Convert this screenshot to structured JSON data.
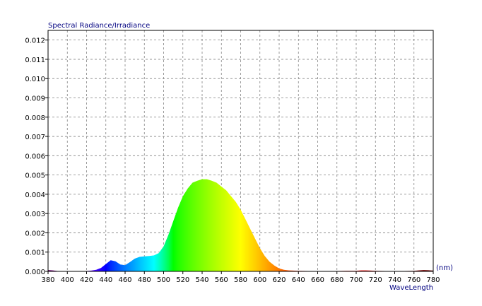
{
  "chart_data": {
    "type": "area",
    "title": "Spectral Radiance/Irradiance",
    "xlabel": "WaveLength",
    "x_unit": "(nm)",
    "ylabel": "",
    "xlim": [
      380,
      780
    ],
    "ylim": [
      0,
      0.0125
    ],
    "grid": true,
    "x_ticks": [
      "380",
      "400",
      "420",
      "440",
      "460",
      "480",
      "500",
      "520",
      "540",
      "560",
      "580",
      "600",
      "620",
      "640",
      "660",
      "680",
      "700",
      "720",
      "740",
      "760",
      "780"
    ],
    "y_ticks": [
      "0.000",
      "0.001",
      "0.002",
      "0.003",
      "0.004",
      "0.005",
      "0.006",
      "0.007",
      "0.008",
      "0.009",
      "0.010",
      "0.011",
      "0.012"
    ],
    "colors": {
      "axis": "#000000",
      "grid": "#808080",
      "title_text": "#000080",
      "tick_text": "#000000"
    },
    "series": [
      {
        "x": [
          380,
          385,
          390,
          395,
          400,
          405,
          410,
          415,
          420,
          425,
          430,
          435,
          440,
          445,
          450,
          455,
          460,
          465,
          470,
          475,
          480,
          485,
          490,
          495,
          500,
          505,
          510,
          515,
          520,
          525,
          530,
          535,
          540,
          545,
          550,
          555,
          560,
          565,
          570,
          575,
          580,
          585,
          590,
          595,
          600,
          605,
          610,
          615,
          620,
          625,
          630,
          640,
          650,
          660,
          670,
          680,
          690,
          700,
          705,
          710,
          715,
          720,
          730,
          740,
          750,
          760,
          765,
          770,
          775,
          780
        ],
        "y": [
          7e-05,
          5e-05,
          2e-05,
          1e-05,
          0.0,
          0.0,
          1e-05,
          1e-05,
          2e-05,
          4e-05,
          8e-05,
          0.00018,
          0.00038,
          0.00058,
          0.00052,
          0.00036,
          0.00032,
          0.00048,
          0.00066,
          0.00075,
          0.00078,
          0.0008,
          0.00083,
          0.00095,
          0.0013,
          0.0019,
          0.0026,
          0.0033,
          0.0039,
          0.0043,
          0.0046,
          0.0047,
          0.00478,
          0.00478,
          0.0047,
          0.0046,
          0.0044,
          0.0042,
          0.0039,
          0.0036,
          0.0032,
          0.0027,
          0.0022,
          0.0017,
          0.0012,
          0.0008,
          0.0005,
          0.0003,
          0.00015,
          8e-05,
          5e-05,
          3e-05,
          2e-05,
          2e-05,
          2e-05,
          2e-05,
          3e-05,
          3e-05,
          5e-05,
          5e-05,
          4e-05,
          3e-05,
          2e-05,
          2e-05,
          2e-05,
          3e-05,
          5e-05,
          7e-05,
          6e-05,
          4e-05
        ]
      }
    ]
  }
}
